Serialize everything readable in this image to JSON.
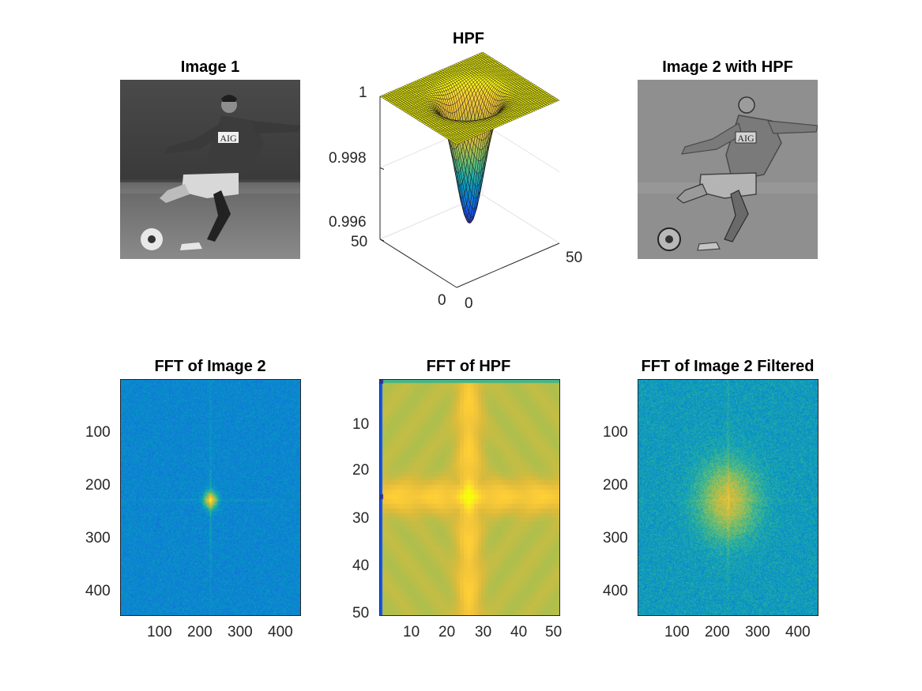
{
  "chart_data": [
    {
      "type": "other",
      "title": "Image 1",
      "content": "grayscale photograph of a footballer striking a ball; jersey text AIG",
      "jersey_text": "AIG"
    },
    {
      "type": "surface",
      "title": "HPF",
      "zticks": [
        "1",
        "0.998",
        "0.996"
      ],
      "xticks": [
        "0",
        "50"
      ],
      "yticks": [
        "0",
        "50"
      ],
      "zlim": [
        0.996,
        1
      ],
      "xlim": [
        0,
        50
      ],
      "ylim": [
        0,
        50
      ],
      "min_value": 0.9965,
      "grid_size": 50,
      "colormap": "parula"
    },
    {
      "type": "other",
      "title": "Image 2 with HPF",
      "content": "high-pass filtered grayscale photograph of the same footballer",
      "jersey_text": "AIG"
    },
    {
      "type": "heatmap",
      "title": "FFT of Image 2",
      "yticks": [
        "100",
        "200",
        "300",
        "400"
      ],
      "xticks": [
        "100",
        "200",
        "300",
        "400"
      ],
      "xlim": [
        0,
        440
      ],
      "ylim": [
        0,
        440
      ],
      "peak": [
        220,
        225
      ],
      "colormap": "parula"
    },
    {
      "type": "heatmap",
      "title": "FFT of HPF",
      "yticks": [
        "10",
        "20",
        "30",
        "40",
        "50"
      ],
      "xticks": [
        "10",
        "20",
        "30",
        "40",
        "50"
      ],
      "xlim": [
        0,
        51
      ],
      "ylim": [
        0,
        51
      ],
      "peak": [
        26,
        26
      ],
      "colormap": "parula"
    },
    {
      "type": "heatmap",
      "title": "FFT of Image 2 Filtered",
      "yticks": [
        "100",
        "200",
        "300",
        "400"
      ],
      "xticks": [
        "100",
        "200",
        "300",
        "400"
      ],
      "xlim": [
        0,
        440
      ],
      "ylim": [
        0,
        440
      ],
      "peak": [
        220,
        225
      ],
      "colormap": "parula"
    }
  ]
}
